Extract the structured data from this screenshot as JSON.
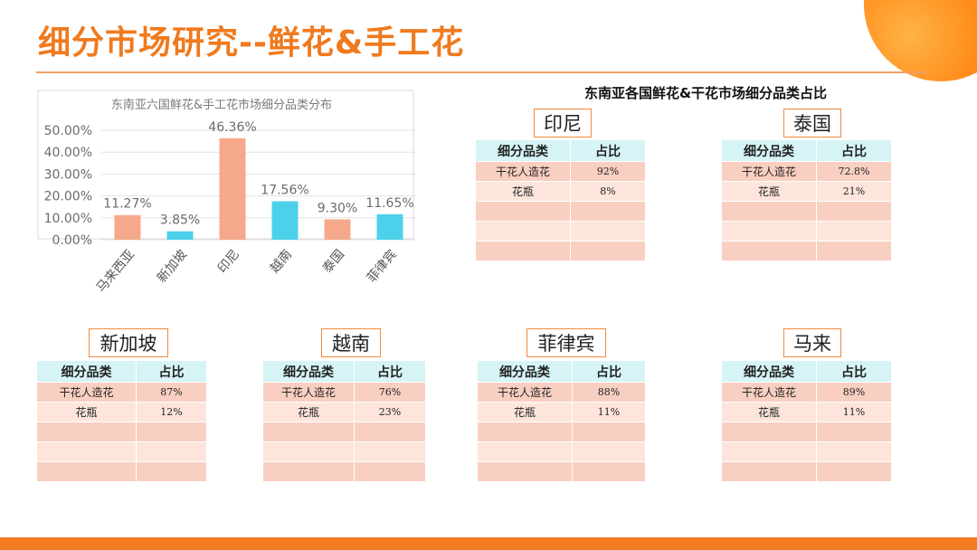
{
  "slide": {
    "title": "细分市场研究--鲜花&手工花",
    "section_title": "东南亚各国鲜花&干花市场细分品类占比"
  },
  "colors": {
    "accent": "#f07a1e",
    "bar_orange": "#f6a98a",
    "bar_cyan": "#4dd0ea",
    "table_header": "#d6f4f6",
    "row_dark": "#f9cfc1",
    "row_light": "#fde5dc"
  },
  "chart_data": {
    "type": "bar",
    "title": "东南亚六国鲜花&手工花市场细分品类分布",
    "categories": [
      "马来西亚",
      "新加坡",
      "印尼",
      "越南",
      "泰国",
      "菲律宾"
    ],
    "values": [
      11.27,
      3.85,
      46.36,
      17.56,
      9.3,
      11.65
    ],
    "value_labels": [
      "11.27%",
      "3.85%",
      "46.36%",
      "17.56%",
      "9.30%",
      "11.65%"
    ],
    "bar_colors": [
      "#f6a98a",
      "#4dd0ea",
      "#f6a98a",
      "#4dd0ea",
      "#f6a98a",
      "#4dd0ea"
    ],
    "yticks": [
      "0.00%",
      "10.00%",
      "20.00%",
      "30.00%",
      "40.00%",
      "50.00%"
    ],
    "ylim": [
      0,
      50
    ],
    "grid": true,
    "xlabel": "",
    "ylabel": ""
  },
  "tables": {
    "header": [
      "细分品类",
      "占比"
    ],
    "indonesia": {
      "country": "印尼",
      "rows": [
        [
          "干花人造花",
          "92%"
        ],
        [
          "花瓶",
          "8%"
        ],
        [
          "",
          ""
        ],
        [
          "",
          ""
        ],
        [
          "",
          ""
        ]
      ]
    },
    "thailand": {
      "country": "泰国",
      "rows": [
        [
          "干花人造花",
          "72.8%"
        ],
        [
          "花瓶",
          "21%"
        ],
        [
          "",
          ""
        ],
        [
          "",
          ""
        ],
        [
          "",
          ""
        ]
      ]
    },
    "singapore": {
      "country": "新加坡",
      "rows": [
        [
          "干花人造花",
          "87%"
        ],
        [
          "花瓶",
          "12%"
        ],
        [
          "",
          ""
        ],
        [
          "",
          ""
        ],
        [
          "",
          ""
        ]
      ]
    },
    "vietnam": {
      "country": "越南",
      "rows": [
        [
          "干花人造花",
          "76%"
        ],
        [
          "花瓶",
          "23%"
        ],
        [
          "",
          ""
        ],
        [
          "",
          ""
        ],
        [
          "",
          ""
        ]
      ]
    },
    "philippines": {
      "country": "菲律宾",
      "rows": [
        [
          "干花人造花",
          "88%"
        ],
        [
          "花瓶",
          "11%"
        ],
        [
          "",
          ""
        ],
        [
          "",
          ""
        ],
        [
          "",
          ""
        ]
      ]
    },
    "malaysia": {
      "country": "马来",
      "rows": [
        [
          "干花人造花",
          "89%"
        ],
        [
          "花瓶",
          "11%"
        ],
        [
          "",
          ""
        ],
        [
          "",
          ""
        ],
        [
          "",
          ""
        ]
      ]
    }
  }
}
